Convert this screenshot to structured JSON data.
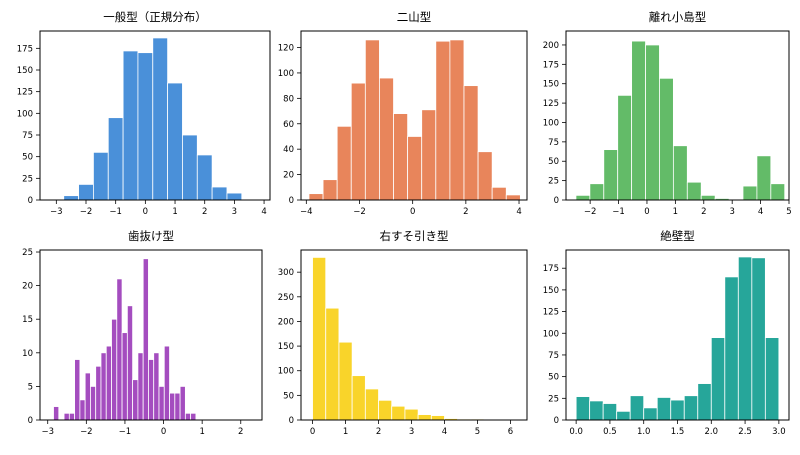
{
  "chart_data": [
    {
      "type": "bar",
      "title": "一般型（正規分布）",
      "color": "#4a90d9",
      "xlim": [
        -3.55,
        4.2
      ],
      "ylim": [
        0,
        195
      ],
      "xticks": [
        -3,
        -2,
        -1,
        0,
        1,
        2,
        3,
        4
      ],
      "yticks": [
        0,
        25,
        50,
        75,
        100,
        125,
        150,
        175
      ],
      "bin_start": -2.75,
      "bin_width": 0.5,
      "values": [
        5,
        18,
        55,
        95,
        172,
        170,
        187,
        135,
        75,
        52,
        15,
        8
      ]
    },
    {
      "type": "bar",
      "title": "二山型",
      "color": "#e8855b",
      "xlim": [
        -4.2,
        4.3
      ],
      "ylim": [
        0,
        133
      ],
      "xticks": [
        -4,
        -2,
        0,
        2,
        4
      ],
      "yticks": [
        0,
        20,
        40,
        60,
        80,
        100,
        120
      ],
      "bin_start": -3.9,
      "bin_width": 0.53,
      "values": [
        5,
        16,
        58,
        92,
        126,
        96,
        68,
        50,
        71,
        125,
        126,
        90,
        38,
        10,
        4
      ]
    },
    {
      "type": "bar",
      "title": "離れ小島型",
      "color": "#63bb68",
      "xlim": [
        -2.85,
        5.0
      ],
      "ylim": [
        0,
        218
      ],
      "xticks": [
        -2,
        -1,
        0,
        1,
        2,
        3,
        4,
        5
      ],
      "yticks": [
        0,
        25,
        50,
        75,
        100,
        125,
        150,
        175,
        200
      ],
      "bin_start": -2.5,
      "bin_width": 0.49,
      "values": [
        6,
        21,
        65,
        135,
        205,
        200,
        157,
        70,
        23,
        6,
        2,
        0,
        18,
        57,
        21
      ]
    },
    {
      "type": "bar",
      "title": "歯抜け型",
      "color": "#a44dbf",
      "xlim": [
        -3.2,
        2.55
      ],
      "ylim": [
        0,
        25.3
      ],
      "xticks": [
        -3,
        -2,
        -1,
        0,
        1,
        2
      ],
      "yticks": [
        0,
        5,
        10,
        15,
        20,
        25
      ],
      "bin_start": -2.85,
      "bin_width": 0.1366,
      "values": [
        2,
        0,
        1,
        1,
        9,
        3,
        7,
        5,
        8,
        10,
        11,
        15,
        21,
        13,
        17,
        6,
        10,
        24,
        9,
        10,
        5,
        11,
        4,
        4,
        5,
        1,
        1
      ]
    },
    {
      "type": "bar",
      "title": "右すそ引き型",
      "color": "#f9d42a",
      "xlim": [
        -0.35,
        6.5
      ],
      "ylim": [
        0,
        345
      ],
      "xticks": [
        0,
        1,
        2,
        3,
        4,
        5,
        6
      ],
      "yticks": [
        0,
        50,
        100,
        150,
        200,
        250,
        300
      ],
      "bin_start": 0.0,
      "bin_width": 0.4,
      "values": [
        330,
        227,
        158,
        90,
        63,
        40,
        28,
        22,
        11,
        9,
        3,
        2,
        2,
        1,
        1
      ]
    },
    {
      "type": "bar",
      "title": "絶壁型",
      "color": "#26a69a",
      "xlim": [
        -0.15,
        3.15
      ],
      "ylim": [
        0,
        196
      ],
      "xticks": [
        0.0,
        0.5,
        1.0,
        1.5,
        2.0,
        2.5,
        3.0
      ],
      "yticks": [
        0,
        25,
        50,
        75,
        100,
        125,
        150,
        175
      ],
      "xtick_labels": [
        "0.0",
        "0.5",
        "1.0",
        "1.5",
        "2.0",
        "2.5",
        "3.0"
      ],
      "bin_start": 0.0,
      "bin_width": 0.2,
      "values": [
        27,
        22,
        19,
        10,
        28,
        14,
        26,
        23,
        28,
        42,
        95,
        165,
        188,
        187,
        95
      ]
    }
  ]
}
